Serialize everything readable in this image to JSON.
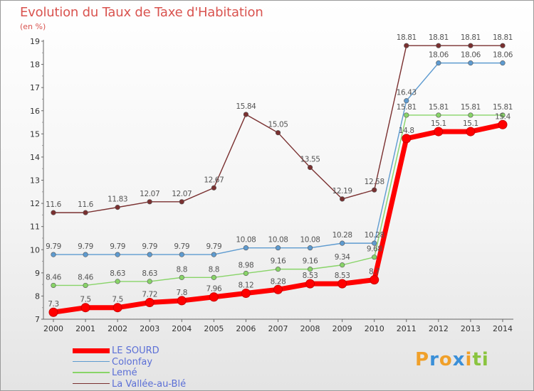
{
  "chart_data": {
    "type": "line",
    "title": "Evolution du Taux de Taxe d'Habitation",
    "subtitle": "(en %)",
    "x": [
      "2000",
      "2001",
      "2002",
      "2003",
      "2004",
      "2005",
      "2006",
      "2007",
      "2008",
      "2009",
      "2010",
      "2011",
      "2012",
      "2013",
      "2014"
    ],
    "ylim": [
      7,
      19
    ],
    "yticks": [
      7,
      8,
      9,
      10,
      11,
      12,
      13,
      14,
      15,
      16,
      17,
      18,
      19
    ],
    "grid": false,
    "legend_position": "bottom-left",
    "series": [
      {
        "name": "LE SOURD",
        "color": "#ff0000",
        "values": [
          7.3,
          7.5,
          7.5,
          7.72,
          7.8,
          7.96,
          8.12,
          8.28,
          8.53,
          8.53,
          8.7,
          14.8,
          15.1,
          15.1,
          15.4
        ],
        "labels": [
          "7.3",
          "7.5",
          "7.5",
          "7.72",
          "7.8",
          "7.96",
          "8.12",
          "8.28",
          "8.53",
          "8.53",
          "8.7",
          "14.8",
          "15.1",
          "15.1",
          "15.4"
        ]
      },
      {
        "name": "Colonfay",
        "color": "#5e9bd0",
        "values": [
          9.79,
          9.79,
          9.79,
          9.79,
          9.79,
          9.79,
          10.08,
          10.08,
          10.08,
          10.28,
          10.28,
          16.43,
          18.06,
          18.06,
          18.06
        ],
        "labels": [
          "9.79",
          "9.79",
          "9.79",
          "9.79",
          "9.79",
          "9.79",
          "10.08",
          "10.08",
          "10.08",
          "10.28",
          "10.28",
          "16.43",
          "18.06",
          "18.06",
          "18.06"
        ]
      },
      {
        "name": "Lemé",
        "color": "#88d468",
        "values": [
          8.46,
          8.46,
          8.63,
          8.63,
          8.8,
          8.8,
          8.98,
          9.16,
          9.16,
          9.34,
          9.68,
          15.81,
          15.81,
          15.81,
          15.81
        ],
        "labels": [
          "8.46",
          "8.46",
          "8.63",
          "8.63",
          "8.8",
          "8.8",
          "8.98",
          "9.16",
          "9.16",
          "9.34",
          "9.68",
          "15.81",
          "15.81",
          "15.81",
          "15.81"
        ]
      },
      {
        "name": "La Vallée-au-Blé",
        "color": "#7a3030",
        "values": [
          11.6,
          11.6,
          11.83,
          12.07,
          12.07,
          12.67,
          15.84,
          15.05,
          13.55,
          12.19,
          12.58,
          18.81,
          18.81,
          18.81,
          18.81
        ],
        "labels": [
          "11.6",
          "11.6",
          "11.83",
          "12.07",
          "12.07",
          "12.67",
          "15.84",
          "15.05",
          "13.55",
          "12.19",
          "12.58",
          "18.81",
          "18.81",
          "18.81",
          "18.81"
        ]
      }
    ]
  },
  "logo": {
    "letters": [
      "P",
      "r",
      "o",
      "x",
      "i",
      "ti"
    ]
  }
}
